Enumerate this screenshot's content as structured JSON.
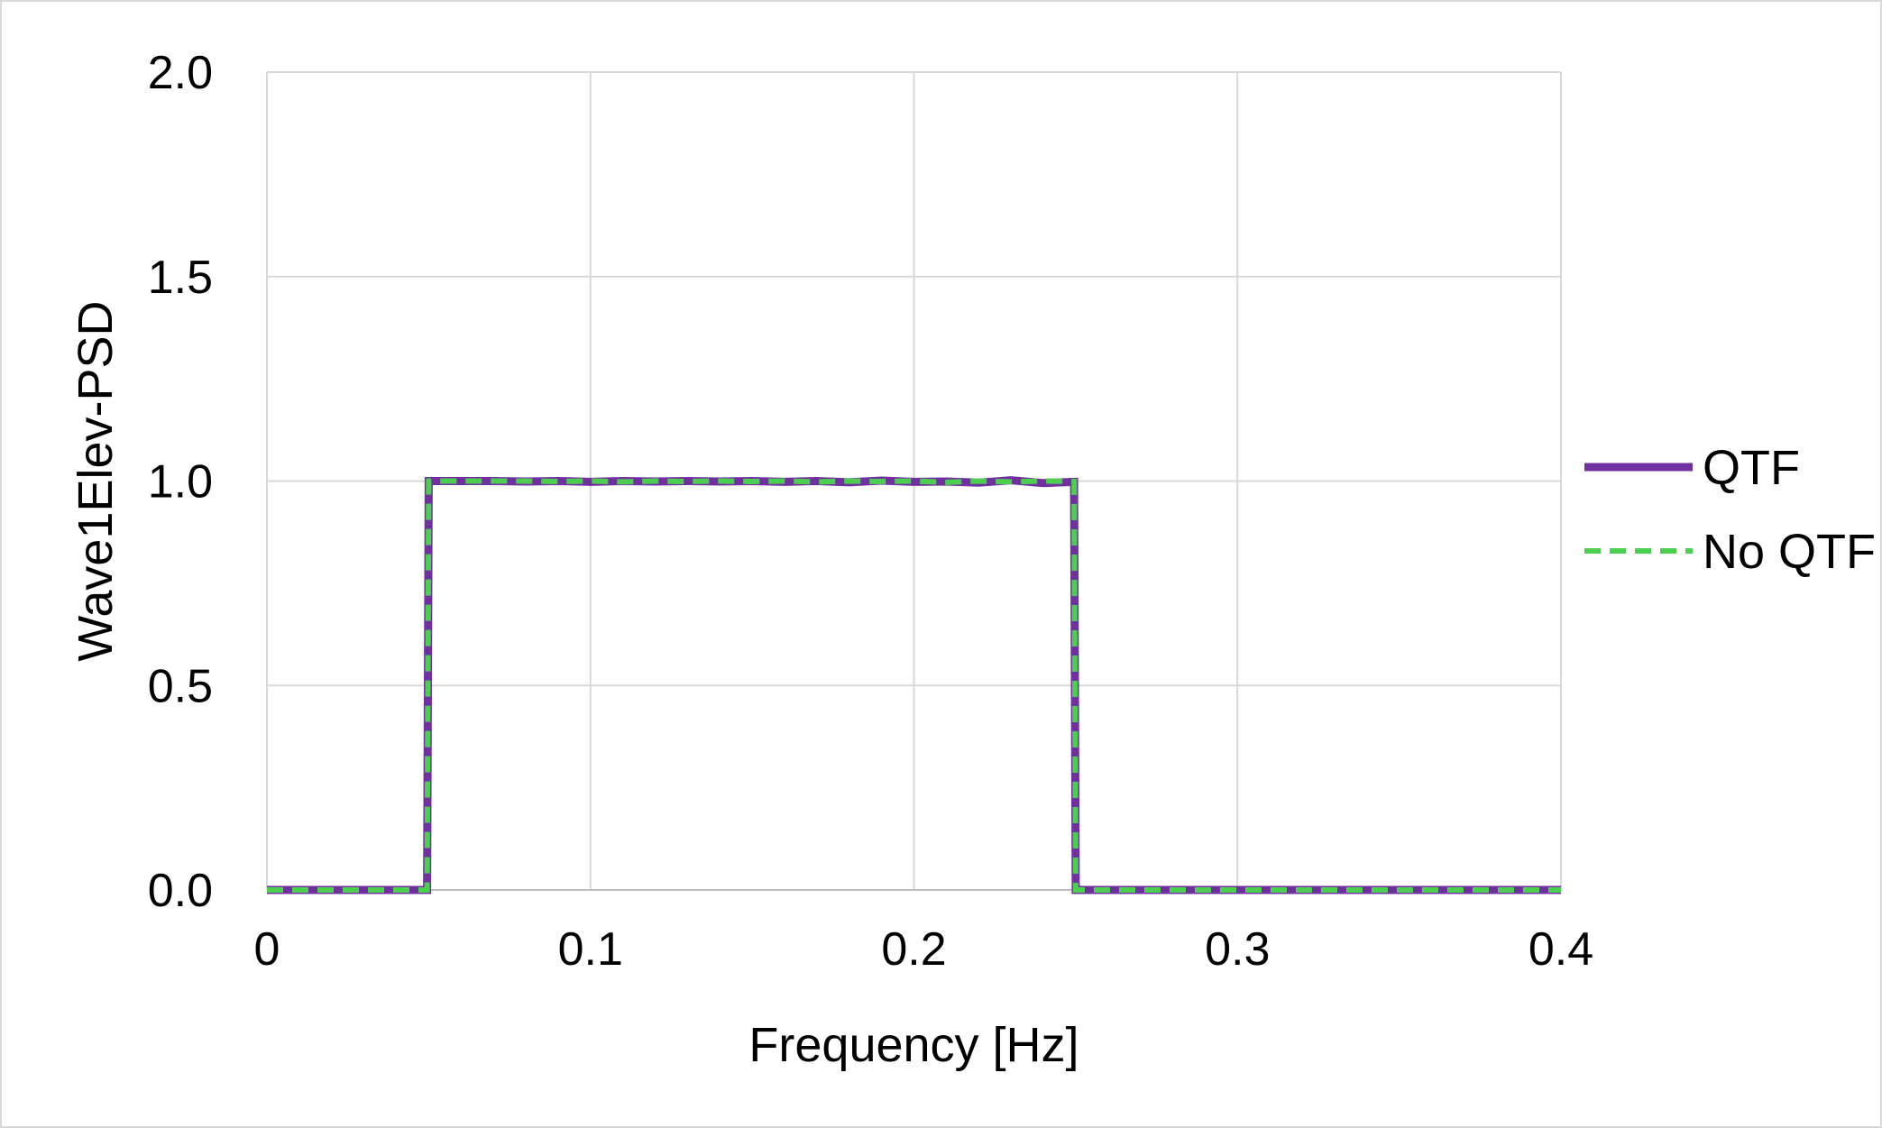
{
  "chart_data": {
    "type": "line",
    "title": "",
    "xlabel": "Frequency [Hz]",
    "ylabel": "Wave1Elev-PSD",
    "xlim": [
      0,
      0.4
    ],
    "ylim": [
      0,
      2.0
    ],
    "x_ticks": [
      0,
      0.1,
      0.2,
      0.3,
      0.4
    ],
    "x_tick_labels": [
      "0",
      "0.1",
      "0.2",
      "0.3",
      "0.4"
    ],
    "y_ticks": [
      0,
      0.5,
      1.0,
      1.5,
      2.0
    ],
    "y_tick_labels": [
      "0.0",
      "0.5",
      "1.0",
      "1.5",
      "2.0"
    ],
    "grid": true,
    "legend_position": "right",
    "series": [
      {
        "name": "QTF",
        "color": "#7030a0",
        "style": "solid",
        "x": [
          0,
          0.0495,
          0.05,
          0.06,
          0.07,
          0.08,
          0.09,
          0.1,
          0.11,
          0.12,
          0.13,
          0.14,
          0.15,
          0.16,
          0.17,
          0.18,
          0.19,
          0.2,
          0.21,
          0.22,
          0.23,
          0.24,
          0.2495,
          0.25,
          0.4
        ],
        "values": [
          0,
          0,
          1.0,
          1.0,
          1.0,
          0.999,
          1.0,
          0.998,
          1.0,
          0.999,
          1.0,
          0.999,
          1.0,
          0.998,
          1.0,
          0.997,
          1.001,
          0.998,
          0.999,
          0.996,
          1.002,
          0.995,
          0.998,
          0,
          0
        ]
      },
      {
        "name": "No QTF",
        "color": "#4ccf50",
        "style": "dashed",
        "x": [
          0,
          0.0495,
          0.05,
          0.06,
          0.07,
          0.08,
          0.09,
          0.1,
          0.11,
          0.12,
          0.13,
          0.14,
          0.15,
          0.16,
          0.17,
          0.18,
          0.19,
          0.2,
          0.21,
          0.22,
          0.23,
          0.24,
          0.2495,
          0.25,
          0.4
        ],
        "values": [
          0,
          0,
          1.0,
          1.0,
          1.0,
          1.0,
          0.999,
          1.0,
          0.998,
          1.0,
          0.999,
          1.0,
          0.999,
          1.0,
          0.998,
          1.0,
          0.999,
          1.0,
          0.997,
          1.0,
          0.998,
          1.0,
          0.999,
          0,
          0
        ]
      }
    ]
  }
}
